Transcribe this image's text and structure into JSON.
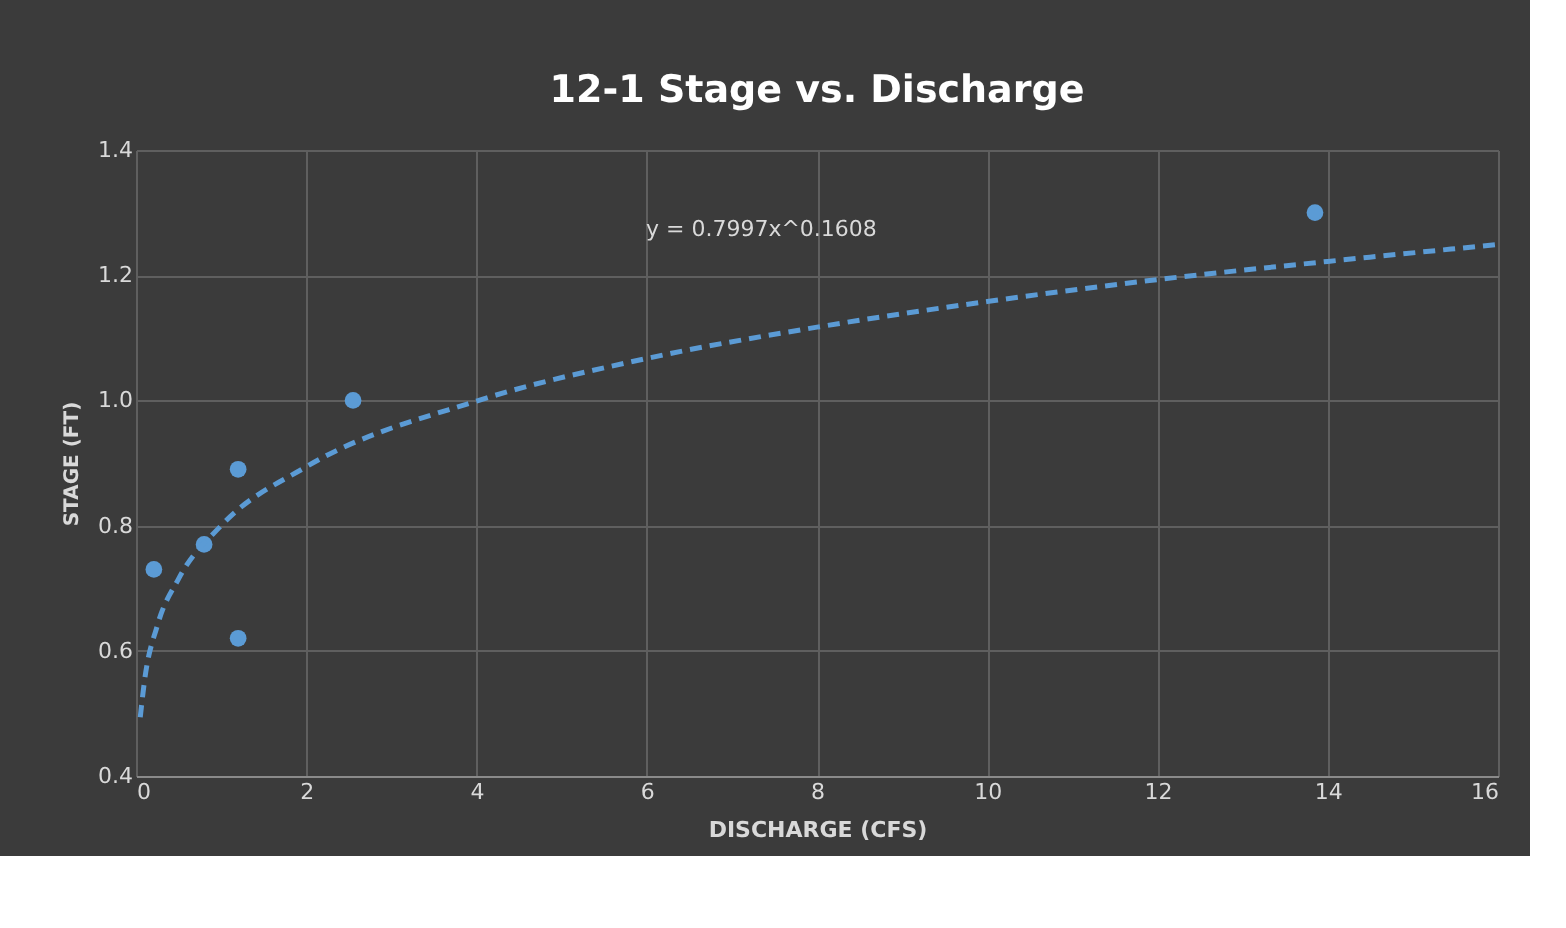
{
  "chart_data": {
    "type": "scatter",
    "title": "12-1 Stage vs. Discharge",
    "xlabel": "DISCHARGE (CFS)",
    "ylabel": "STAGE (FT)",
    "annotations": [
      "y = 0.7997x^0.1608"
    ],
    "series": [
      {
        "color": "#5b9bd5",
        "marker": "circle",
        "x": [
          0.21,
          0.8,
          1.2,
          1.2,
          2.55,
          13.85
        ],
        "values": [
          0.73,
          0.77,
          0.89,
          0.62,
          1.0,
          1.3
        ]
      },
      {
        "type": "line",
        "color": "#5b9bd5",
        "line_style": "dashed",
        "marker": "none",
        "x": [
          0.05,
          0.1,
          0.25,
          0.5,
          1,
          2,
          4,
          6,
          8,
          10,
          12,
          14,
          16
        ],
        "values": [
          0.494,
          0.552,
          0.64,
          0.715,
          0.8,
          0.894,
          0.999,
          1.067,
          1.117,
          1.158,
          1.193,
          1.222,
          1.249
        ]
      }
    ],
    "xlim": [
      0,
      16
    ],
    "xticks": [
      0,
      2,
      4,
      6,
      8,
      10,
      12,
      14,
      16
    ],
    "ylim": [
      0.4,
      1.4
    ],
    "yticks": [
      {
        "value": 0.4,
        "label": "0.4"
      },
      {
        "value": 0.6,
        "label": "0.6"
      },
      {
        "value": 0.8,
        "label": "0.8"
      },
      {
        "value": 1.0,
        "label": "1.0"
      },
      {
        "value": 1.2,
        "label": "1.2"
      },
      {
        "value": 1.4,
        "label": "1.4"
      }
    ],
    "grid": true
  }
}
